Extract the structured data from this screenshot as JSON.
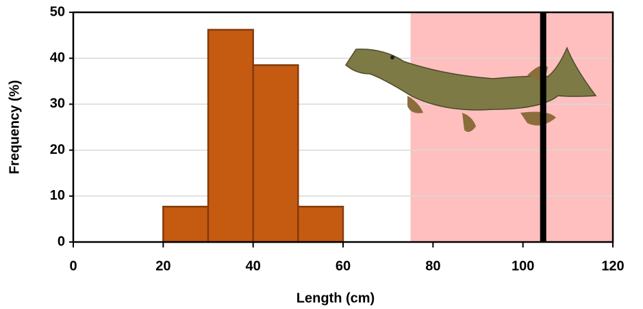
{
  "chart_data": {
    "type": "histogram",
    "x_label": "Length (cm)",
    "y_label": "Frequency (%)",
    "bins": [
      20,
      30,
      40,
      50,
      60
    ],
    "values": [
      7.7,
      46.2,
      38.5,
      7.7
    ],
    "color": "#c55a11",
    "edge_color": "#843c0c",
    "shaded_region": [
      75,
      120
    ],
    "shaded_color": "#ffbfbf",
    "reference_line": 104.5,
    "reference_color": "#000000",
    "xlim": [
      0,
      120
    ],
    "xticks": [
      0,
      20,
      40,
      60,
      80,
      100,
      120
    ],
    "ylim": [
      0,
      50
    ],
    "yticks": [
      0,
      10,
      20,
      30,
      40,
      50
    ],
    "grid": true
  }
}
